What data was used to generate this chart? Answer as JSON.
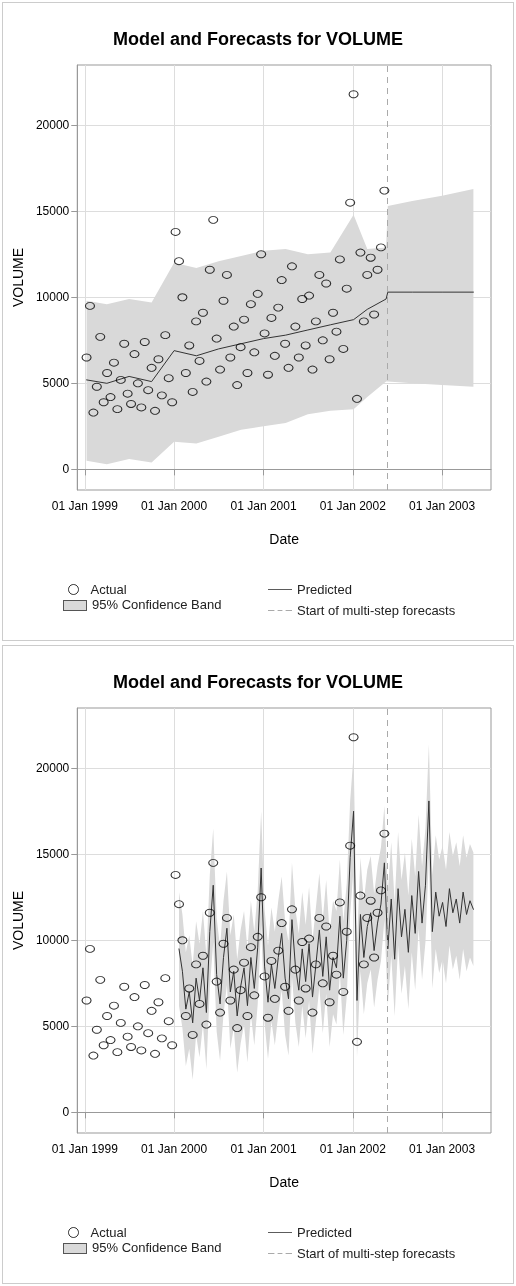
{
  "chart_data": [
    {
      "type": "scatter",
      "title": "Model and Forecasts for VOLUME",
      "xlabel": "Date",
      "ylabel": "VOLUME",
      "xlim": [
        "1998-12-01",
        "2003-07-20"
      ],
      "xticks": [
        {
          "value": "1999-01-01",
          "label": "01 Jan 1999"
        },
        {
          "value": "2000-01-01",
          "label": "01 Jan 2000"
        },
        {
          "value": "2001-01-01",
          "label": "01 Jan 2001"
        },
        {
          "value": "2002-01-01",
          "label": "01 Jan 2002"
        },
        {
          "value": "2003-01-01",
          "label": "01 Jan 2003"
        }
      ],
      "ylim": [
        -1200,
        23500
      ],
      "yticks": [
        0,
        5000,
        10000,
        15000,
        20000
      ],
      "grid": true,
      "legend": "bottom",
      "ref_lines": [
        {
          "axis": "x",
          "value": "2002-05-21",
          "label": "Start of multi-step forecasts",
          "color": "#aaaaaa",
          "line_style": "dashed"
        }
      ],
      "series": [
        {
          "name": "Actual",
          "type": "scatter",
          "marker": "circle",
          "color": "#000000",
          "x": [
            "1999-01-08",
            "1999-01-22",
            "1999-02-05",
            "1999-02-19",
            "1999-03-05",
            "1999-03-19",
            "1999-04-02",
            "1999-04-16",
            "1999-04-30",
            "1999-05-14",
            "1999-05-28",
            "1999-06-11",
            "1999-06-25",
            "1999-07-09",
            "1999-07-23",
            "1999-08-06",
            "1999-08-20",
            "1999-09-03",
            "1999-09-17",
            "1999-10-01",
            "1999-10-15",
            "1999-10-29",
            "1999-11-12",
            "1999-11-26",
            "1999-12-10",
            "1999-12-24",
            "2000-01-07",
            "2000-01-21",
            "2000-02-04",
            "2000-02-18",
            "2000-03-03",
            "2000-03-17",
            "2000-03-31",
            "2000-04-14",
            "2000-04-28",
            "2000-05-12",
            "2000-05-26",
            "2000-06-09",
            "2000-06-23",
            "2000-07-07",
            "2000-07-21",
            "2000-08-04",
            "2000-08-18",
            "2000-09-01",
            "2000-09-15",
            "2000-09-29",
            "2000-10-13",
            "2000-10-27",
            "2000-11-10",
            "2000-11-24",
            "2000-12-08",
            "2000-12-22",
            "2001-01-05",
            "2001-01-19",
            "2001-02-02",
            "2001-02-16",
            "2001-03-02",
            "2001-03-16",
            "2001-03-30",
            "2001-04-13",
            "2001-04-27",
            "2001-05-11",
            "2001-05-25",
            "2001-06-08",
            "2001-06-22",
            "2001-07-06",
            "2001-07-20",
            "2001-08-03",
            "2001-08-17",
            "2001-08-31",
            "2001-09-14",
            "2001-09-28",
            "2001-10-12",
            "2001-10-26",
            "2001-11-09",
            "2001-11-23",
            "2001-12-07",
            "2001-12-21",
            "2002-01-04",
            "2002-01-18",
            "2002-02-01",
            "2002-02-15",
            "2002-03-01",
            "2002-03-15",
            "2002-03-29",
            "2002-04-12",
            "2002-04-26",
            "2002-05-10"
          ],
          "values": [
            6500,
            9500,
            3300,
            4800,
            7700,
            3900,
            5600,
            4200,
            6200,
            3500,
            5200,
            7300,
            4400,
            3800,
            6700,
            5000,
            3600,
            7400,
            4600,
            5900,
            3400,
            6400,
            4300,
            7800,
            5300,
            3900,
            13800,
            12100,
            10000,
            5600,
            7200,
            4500,
            8600,
            6300,
            9100,
            5100,
            11600,
            14500,
            7600,
            5800,
            9800,
            11300,
            6500,
            8300,
            4900,
            7100,
            8700,
            5600,
            9600,
            6800,
            10200,
            12500,
            7900,
            5500,
            8800,
            6600,
            9400,
            11000,
            7300,
            5900,
            11800,
            8300,
            6500,
            9900,
            7200,
            10100,
            5800,
            8600,
            11300,
            7500,
            10800,
            6400,
            9100,
            8000,
            12200,
            7000,
            10500,
            15500,
            21800,
            4100,
            12600,
            8600,
            11300,
            12300,
            9000,
            11600,
            12900,
            16200
          ]
        },
        {
          "name": "Predicted",
          "type": "line",
          "marker": "none",
          "color": "#333333",
          "x": [
            "1999-01-08",
            "1999-04-01",
            "1999-07-01",
            "1999-10-01",
            "2000-01-01",
            "2000-04-01",
            "2000-07-01",
            "2000-10-01",
            "2001-01-01",
            "2001-04-01",
            "2001-07-01",
            "2001-10-01",
            "2002-01-04",
            "2002-03-01",
            "2002-05-17",
            "2002-05-24",
            "2002-09-01",
            "2003-01-01",
            "2003-05-09"
          ],
          "values": [
            5200,
            5000,
            5400,
            5100,
            6900,
            6600,
            7000,
            7300,
            7600,
            7800,
            8100,
            8400,
            8700,
            9300,
            9900,
            10300,
            10300,
            10300,
            10300
          ],
          "lower": [
            500,
            300,
            600,
            400,
            1600,
            1500,
            1900,
            2300,
            2500,
            2700,
            3200,
            3400,
            3500,
            4200,
            5100,
            5100,
            5000,
            4900,
            4800
          ],
          "upper": [
            9800,
            9600,
            9900,
            9700,
            12000,
            11700,
            12100,
            12400,
            12700,
            12800,
            12500,
            12600,
            14800,
            12800,
            12900,
            15300,
            15600,
            15900,
            16300
          ]
        }
      ],
      "annotations": [
        "95% Confidence Band"
      ]
    },
    {
      "type": "scatter",
      "title": "Model and Forecasts for VOLUME",
      "xlabel": "Date",
      "ylabel": "VOLUME",
      "xlim": [
        "1998-12-01",
        "2003-07-20"
      ],
      "xticks": [
        {
          "value": "1999-01-01",
          "label": "01 Jan 1999"
        },
        {
          "value": "2000-01-01",
          "label": "01 Jan 2000"
        },
        {
          "value": "2001-01-01",
          "label": "01 Jan 2001"
        },
        {
          "value": "2002-01-01",
          "label": "01 Jan 2002"
        },
        {
          "value": "2003-01-01",
          "label": "01 Jan 2003"
        }
      ],
      "ylim": [
        -1200,
        23500
      ],
      "yticks": [
        0,
        5000,
        10000,
        15000,
        20000
      ],
      "grid": true,
      "legend": "bottom",
      "ref_lines": [
        {
          "axis": "x",
          "value": "2002-05-21",
          "label": "Start of multi-step forecasts",
          "color": "#aaaaaa",
          "line_style": "dashed"
        }
      ],
      "series": [
        {
          "name": "Actual",
          "type": "scatter",
          "marker": "circle",
          "color": "#000000",
          "x": [
            "1999-01-08",
            "1999-01-22",
            "1999-02-05",
            "1999-02-19",
            "1999-03-05",
            "1999-03-19",
            "1999-04-02",
            "1999-04-16",
            "1999-04-30",
            "1999-05-14",
            "1999-05-28",
            "1999-06-11",
            "1999-06-25",
            "1999-07-09",
            "1999-07-23",
            "1999-08-06",
            "1999-08-20",
            "1999-09-03",
            "1999-09-17",
            "1999-10-01",
            "1999-10-15",
            "1999-10-29",
            "1999-11-12",
            "1999-11-26",
            "1999-12-10",
            "1999-12-24",
            "2000-01-07",
            "2000-01-21",
            "2000-02-04",
            "2000-02-18",
            "2000-03-03",
            "2000-03-17",
            "2000-03-31",
            "2000-04-14",
            "2000-04-28",
            "2000-05-12",
            "2000-05-26",
            "2000-06-09",
            "2000-06-23",
            "2000-07-07",
            "2000-07-21",
            "2000-08-04",
            "2000-08-18",
            "2000-09-01",
            "2000-09-15",
            "2000-09-29",
            "2000-10-13",
            "2000-10-27",
            "2000-11-10",
            "2000-11-24",
            "2000-12-08",
            "2000-12-22",
            "2001-01-05",
            "2001-01-19",
            "2001-02-02",
            "2001-02-16",
            "2001-03-02",
            "2001-03-16",
            "2001-03-30",
            "2001-04-13",
            "2001-04-27",
            "2001-05-11",
            "2001-05-25",
            "2001-06-08",
            "2001-06-22",
            "2001-07-06",
            "2001-07-20",
            "2001-08-03",
            "2001-08-17",
            "2001-08-31",
            "2001-09-14",
            "2001-09-28",
            "2001-10-12",
            "2001-10-26",
            "2001-11-09",
            "2001-11-23",
            "2001-12-07",
            "2001-12-21",
            "2002-01-04",
            "2002-01-18",
            "2002-02-01",
            "2002-02-15",
            "2002-03-01",
            "2002-03-15",
            "2002-03-29",
            "2002-04-12",
            "2002-04-26",
            "2002-05-10"
          ],
          "values": [
            6500,
            9500,
            3300,
            4800,
            7700,
            3900,
            5600,
            4200,
            6200,
            3500,
            5200,
            7300,
            4400,
            3800,
            6700,
            5000,
            3600,
            7400,
            4600,
            5900,
            3400,
            6400,
            4300,
            7800,
            5300,
            3900,
            13800,
            12100,
            10000,
            5600,
            7200,
            4500,
            8600,
            6300,
            9100,
            5100,
            11600,
            14500,
            7600,
            5800,
            9800,
            11300,
            6500,
            8300,
            4900,
            7100,
            8700,
            5600,
            9600,
            6800,
            10200,
            12500,
            7900,
            5500,
            8800,
            6600,
            9400,
            11000,
            7300,
            5900,
            11800,
            8300,
            6500,
            9900,
            7200,
            10100,
            5800,
            8600,
            11300,
            7500,
            10800,
            6400,
            9100,
            8000,
            12200,
            7000,
            10500,
            15500,
            21800,
            4100,
            12600,
            8600,
            11300,
            12300,
            9000,
            11600,
            12900,
            16200
          ]
        },
        {
          "name": "Predicted",
          "type": "line",
          "marker": "none",
          "color": "#333333",
          "x": [
            "2000-01-21",
            "2000-02-04",
            "2000-02-18",
            "2000-03-03",
            "2000-03-17",
            "2000-03-31",
            "2000-04-14",
            "2000-04-28",
            "2000-05-12",
            "2000-05-26",
            "2000-06-09",
            "2000-06-23",
            "2000-07-07",
            "2000-07-21",
            "2000-08-04",
            "2000-08-18",
            "2000-09-01",
            "2000-09-15",
            "2000-09-29",
            "2000-10-13",
            "2000-10-27",
            "2000-11-10",
            "2000-11-24",
            "2000-12-08",
            "2000-12-22",
            "2001-01-05",
            "2001-01-19",
            "2001-02-02",
            "2001-02-16",
            "2001-03-02",
            "2001-03-16",
            "2001-03-30",
            "2001-04-13",
            "2001-04-27",
            "2001-05-11",
            "2001-05-25",
            "2001-06-08",
            "2001-06-22",
            "2001-07-06",
            "2001-07-20",
            "2001-08-03",
            "2001-08-17",
            "2001-08-31",
            "2001-09-14",
            "2001-09-28",
            "2001-10-12",
            "2001-10-26",
            "2001-11-09",
            "2001-11-23",
            "2001-12-07",
            "2001-12-21",
            "2002-01-04",
            "2002-01-18",
            "2002-02-01",
            "2002-02-15",
            "2002-03-01",
            "2002-03-15",
            "2002-03-29",
            "2002-04-12",
            "2002-04-26",
            "2002-05-10",
            "2002-05-24",
            "2002-06-07",
            "2002-06-21",
            "2002-07-05",
            "2002-07-19",
            "2002-08-02",
            "2002-08-16",
            "2002-08-30",
            "2002-09-13",
            "2002-09-27",
            "2002-10-11",
            "2002-10-25",
            "2002-11-08",
            "2002-11-22",
            "2002-12-06",
            "2002-12-20",
            "2003-01-03",
            "2003-01-17",
            "2003-01-31",
            "2003-02-14",
            "2003-02-28",
            "2003-03-14",
            "2003-03-28",
            "2003-04-11",
            "2003-04-25",
            "2003-05-09"
          ],
          "values": [
            9500,
            8200,
            6000,
            7000,
            5200,
            7800,
            6500,
            8400,
            5800,
            10500,
            13200,
            8000,
            6300,
            9000,
            10700,
            7000,
            8200,
            5600,
            7300,
            8400,
            6200,
            9000,
            7200,
            9600,
            14200,
            8500,
            6400,
            8600,
            7200,
            9000,
            10400,
            7800,
            6600,
            11200,
            8500,
            7100,
            9500,
            7600,
            9800,
            6700,
            8600,
            10600,
            7900,
            10200,
            7100,
            9000,
            8400,
            11400,
            7800,
            10000,
            14800,
            17500,
            6500,
            11500,
            9000,
            10800,
            11600,
            9400,
            11000,
            12100,
            14500,
            9500,
            12400,
            8900,
            13000,
            10200,
            11800,
            9300,
            12600,
            10400,
            14000,
            11000,
            13200,
            18100,
            10500,
            12800,
            11400,
            12200,
            10800,
            13000,
            11600,
            12400,
            11000,
            12800,
            11500,
            12300,
            11800
          ],
          "lower": [
            6200,
            4900,
            2700,
            3700,
            1900,
            4500,
            3200,
            5100,
            2500,
            7200,
            9900,
            4700,
            3000,
            5700,
            7400,
            3700,
            4900,
            2300,
            4000,
            5100,
            2900,
            5700,
            3900,
            6300,
            10900,
            5200,
            3100,
            5300,
            3900,
            5700,
            7100,
            4500,
            3300,
            7900,
            5200,
            3800,
            6200,
            4300,
            6500,
            3400,
            5300,
            7300,
            4600,
            6900,
            3800,
            5700,
            5100,
            8100,
            4500,
            6700,
            11500,
            14200,
            3200,
            8200,
            5700,
            7500,
            8300,
            6100,
            7700,
            8800,
            11200,
            6200,
            9100,
            5600,
            9700,
            6900,
            8500,
            6000,
            9300,
            7100,
            10700,
            7700,
            9900,
            14800,
            7200,
            9500,
            8100,
            8900,
            7500,
            9700,
            8300,
            9100,
            7700,
            9500,
            8200,
            9000,
            8500
          ],
          "upper": [
            12800,
            11500,
            9300,
            10300,
            8500,
            11100,
            9800,
            11700,
            9100,
            13800,
            16500,
            11300,
            9600,
            12300,
            14000,
            10300,
            11500,
            8900,
            10600,
            11700,
            9500,
            12300,
            10500,
            12900,
            17500,
            11800,
            9700,
            11900,
            10500,
            12300,
            13700,
            11100,
            9900,
            14500,
            11800,
            10400,
            12800,
            10900,
            13100,
            10000,
            11900,
            13900,
            11200,
            13500,
            10400,
            12300,
            11700,
            14700,
            11100,
            13300,
            18100,
            20800,
            9800,
            14800,
            12300,
            14100,
            14900,
            12700,
            14300,
            15400,
            17800,
            12800,
            15700,
            12200,
            16300,
            13500,
            15100,
            12600,
            15900,
            13700,
            17300,
            14300,
            16500,
            21400,
            13800,
            16100,
            14700,
            15500,
            14100,
            16300,
            14900,
            15700,
            14300,
            16100,
            14800,
            15600,
            15100
          ]
        }
      ],
      "annotations": [
        "95% Confidence Band"
      ]
    }
  ]
}
